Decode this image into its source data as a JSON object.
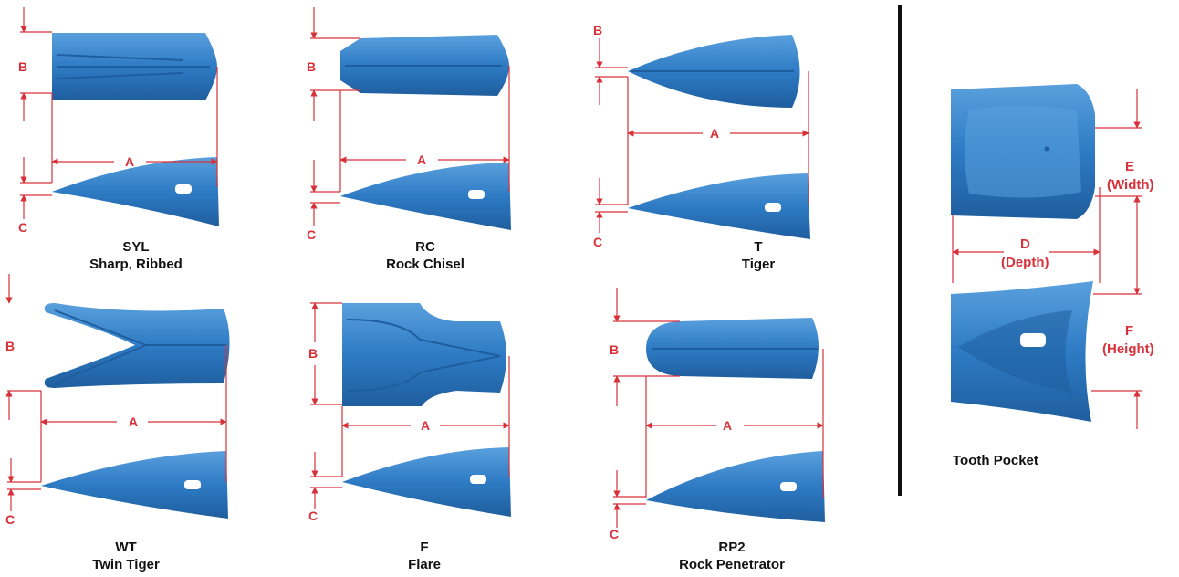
{
  "colors": {
    "tooth": "#2e7bc4",
    "tooth_dark": "#1f5e9e",
    "tooth_light": "#5aa0dd",
    "dim": "#d8313a",
    "divider": "#111111"
  },
  "dimension_labels": {
    "a": "A",
    "b": "B",
    "c": "C",
    "d": "D",
    "e": "E",
    "f": "F"
  },
  "pocket_labels": {
    "e_sub": "(Width)",
    "d_sub": "(Depth)",
    "f_sub": "(Height)",
    "caption": "Tooth Pocket"
  },
  "teeth": [
    {
      "code": "SYL",
      "name": "Sharp, Ribbed"
    },
    {
      "code": "RC",
      "name": "Rock Chisel"
    },
    {
      "code": "T",
      "name": "Tiger"
    },
    {
      "code": "WT",
      "name": "Twin Tiger"
    },
    {
      "code": "F",
      "name": "Flare"
    },
    {
      "code": "RP2",
      "name": "Rock Penetrator"
    }
  ]
}
